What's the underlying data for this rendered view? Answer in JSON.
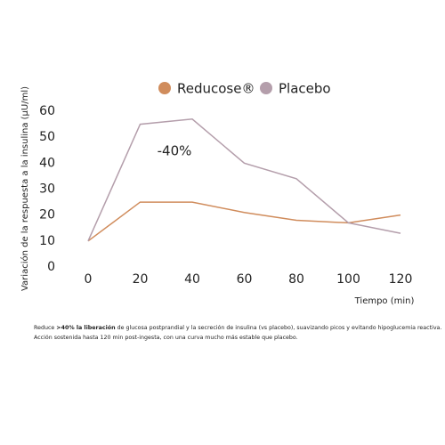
{
  "chart_data": {
    "type": "line",
    "x": [
      0,
      20,
      40,
      60,
      80,
      100,
      120
    ],
    "series": [
      {
        "name": "Reducose®",
        "color": "#d08c5c",
        "values": [
          10,
          25,
          25,
          21,
          18,
          17,
          20
        ]
      },
      {
        "name": "Placebo",
        "color": "#b49eab",
        "values": [
          10,
          55,
          57,
          40,
          34,
          17,
          13
        ]
      }
    ],
    "xlim": [
      0,
      120
    ],
    "xticks": [
      0,
      20,
      40,
      60,
      80,
      100,
      120
    ],
    "ylim": [
      0,
      60
    ],
    "yticks": [
      0,
      10,
      20,
      30,
      40,
      50,
      60
    ],
    "ylabel": "Variación de la respuesta a la insulina (µU/ml)",
    "xlabel": "Tiempo (min)",
    "annotation": "-40%",
    "legend": "top",
    "grid": false
  },
  "footnote": {
    "line1": [
      "Reduce ",
      ">40% la liberación",
      " de glucosa postprandial y la secreción de insulina (vs placebo), suavizando picos y evitando hipoglucemia reactiva."
    ],
    "line2": "Acción sostenida hasta 120 min post-ingesta, con una curva mucho más estable que placebo."
  }
}
